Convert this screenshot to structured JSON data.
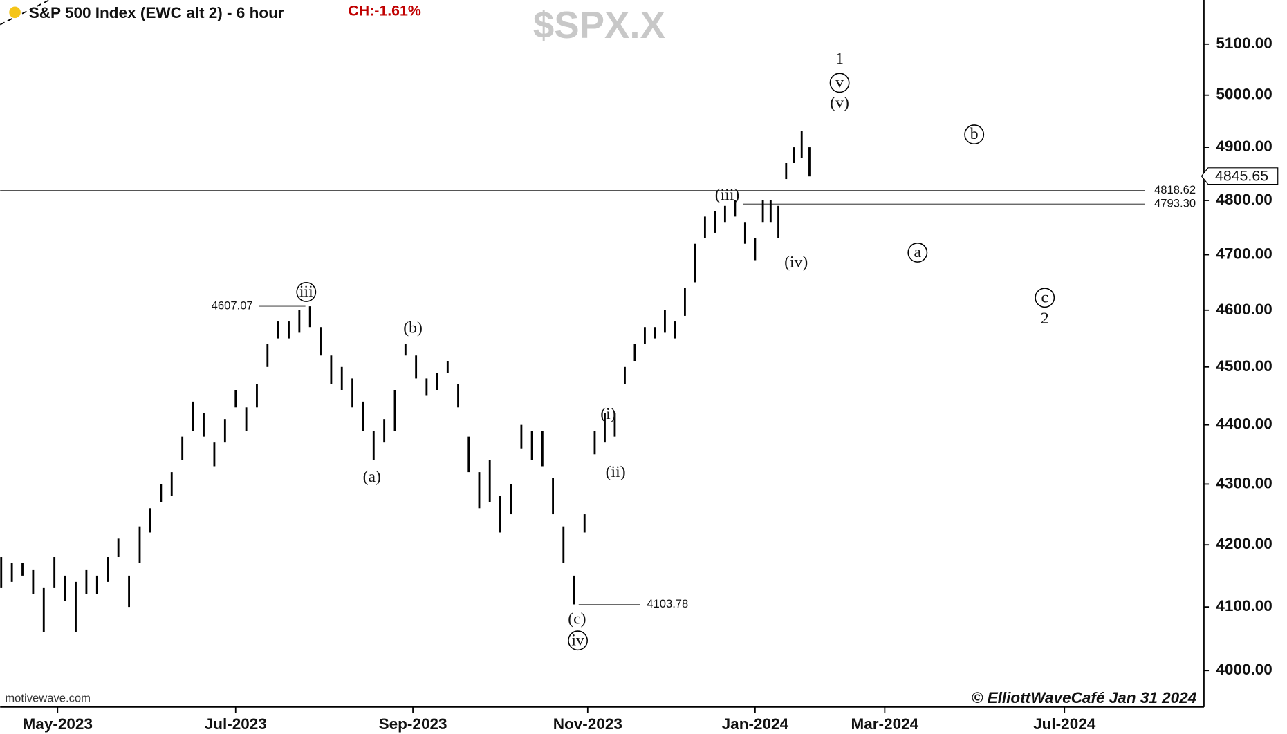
{
  "chart_data": {
    "type": "hl_bar",
    "title": "S&P 500 Index (EWC alt 2) - 6 hour",
    "change": "CH:-1.61%",
    "symbol": "$SPX.X",
    "source": "motivewave.com",
    "copyright": "© ElliottWaveCafé Jan 31 2024",
    "color": "#000000",
    "log": true,
    "x": [
      2023.28,
      2023.29,
      2023.3,
      2023.31,
      2023.32,
      2023.33,
      2023.34,
      2023.35,
      2023.36,
      2023.37,
      2023.38,
      2023.39,
      2023.4,
      2023.41,
      2023.42,
      2023.43,
      2023.44,
      2023.45,
      2023.46,
      2023.47,
      2023.48,
      2023.49,
      2023.5,
      2023.51,
      2023.52,
      2023.53,
      2023.54,
      2023.55,
      2023.56,
      2023.57,
      2023.58,
      2023.59,
      2023.6,
      2023.61,
      2023.62,
      2023.63,
      2023.64,
      2023.65,
      2023.66,
      2023.67,
      2023.68,
      2023.69,
      2023.7,
      2023.71,
      2023.72,
      2023.73,
      2023.74,
      2023.75,
      2023.76,
      2023.77,
      2023.78,
      2023.79,
      2023.8,
      2023.81,
      2023.82,
      2023.83,
      2023.84,
      2023.85,
      2023.86,
      2023.87,
      2023.88,
      2023.89,
      2023.9,
      2023.91,
      2023.92,
      2023.93,
      2023.94,
      2023.95,
      2023.96,
      2023.97,
      2023.98,
      2023.99,
      2024.0,
      2024.01,
      2024.02,
      2024.03,
      2024.04,
      2024.05,
      2024.06,
      2024.07
    ],
    "high": [
      4180,
      4170,
      4170,
      4160,
      4130,
      4180,
      4150,
      4140,
      4160,
      4150,
      4180,
      4210,
      4150,
      4230,
      4260,
      4300,
      4320,
      4380,
      4440,
      4420,
      4370,
      4410,
      4460,
      4430,
      4470,
      4540,
      4580,
      4580,
      4600,
      4607,
      4570,
      4520,
      4500,
      4480,
      4440,
      4390,
      4410,
      4460,
      4540,
      4520,
      4480,
      4490,
      4510,
      4470,
      4380,
      4320,
      4340,
      4280,
      4300,
      4400,
      4390,
      4390,
      4310,
      4230,
      4150,
      4250,
      4390,
      4420,
      4420,
      4500,
      4540,
      4570,
      4570,
      4600,
      4580,
      4640,
      4720,
      4770,
      4780,
      4790,
      4800,
      4760,
      4730,
      4800,
      4800,
      4790,
      4870,
      4900,
      4931,
      4900
    ],
    "low": [
      4130,
      4140,
      4150,
      4120,
      4060,
      4130,
      4110,
      4060,
      4120,
      4120,
      4140,
      4180,
      4100,
      4170,
      4220,
      4270,
      4280,
      4340,
      4390,
      4380,
      4330,
      4370,
      4430,
      4390,
      4430,
      4500,
      4550,
      4550,
      4560,
      4570,
      4520,
      4470,
      4460,
      4430,
      4390,
      4340,
      4370,
      4390,
      4520,
      4480,
      4450,
      4460,
      4490,
      4430,
      4320,
      4260,
      4270,
      4220,
      4250,
      4360,
      4340,
      4330,
      4250,
      4170,
      4104,
      4220,
      4350,
      4370,
      4380,
      4470,
      4510,
      4540,
      4550,
      4560,
      4550,
      4590,
      4650,
      4730,
      4740,
      4760,
      4770,
      4720,
      4690,
      4760,
      4760,
      4730,
      4840,
      4870,
      4880,
      4845
    ],
    "xlim": [
      2023.279,
      2024.758
    ],
    "xticks": [
      {
        "value": 2023.333,
        "label": "May-2023"
      },
      {
        "value": 2023.5,
        "label": "Jul-2023"
      },
      {
        "value": 2023.667,
        "label": "Sep-2023"
      },
      {
        "value": 2023.833,
        "label": "Nov-2023"
      },
      {
        "value": 2024.0,
        "label": "Jan-2024"
      },
      {
        "value": 2024.167,
        "label": "Mar-2024"
      },
      {
        "value": 2024.5,
        "label": "Jul-2024"
      }
    ],
    "ylim": [
      3944,
      5188
    ],
    "yticks": [
      {
        "value": 4000,
        "label": "4000.00"
      },
      {
        "value": 4100,
        "label": "4100.00"
      },
      {
        "value": 4200,
        "label": "4200.00"
      },
      {
        "value": 4300,
        "label": "4300.00"
      },
      {
        "value": 4400,
        "label": "4400.00"
      },
      {
        "value": 4500,
        "label": "4500.00"
      },
      {
        "value": 4600,
        "label": "4600.00"
      },
      {
        "value": 4700,
        "label": "4700.00"
      },
      {
        "value": 4800,
        "label": "4800.00"
      },
      {
        "value": 4900,
        "label": "4900.00"
      },
      {
        "value": 5000,
        "label": "5000.00"
      },
      {
        "value": 5100,
        "label": "5100.00"
      }
    ],
    "levels": [
      4818.62,
      {
        "value": 4793.3,
        "label": "4793.30"
      }
    ],
    "markers": [
      4607.07,
      4103.78
    ],
    "last_price": 4845.65,
    "annotations": [
      "1",
      "v",
      "(v)",
      "(iii)",
      "(iv)",
      "b",
      "a",
      "c",
      "2",
      "iii",
      "(b)",
      "(a)",
      "(i)",
      "(ii)",
      "(c)",
      "iv"
    ]
  }
}
